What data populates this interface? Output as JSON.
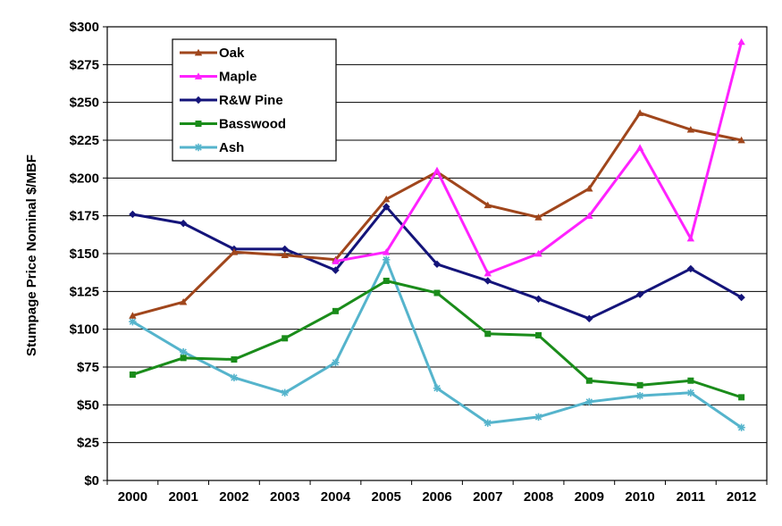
{
  "chart_data": {
    "type": "line",
    "title": "",
    "xlabel": "",
    "ylabel": "Stumpage Price Nominal $/MBF",
    "categories": [
      "2000",
      "2001",
      "2002",
      "2003",
      "2004",
      "2005",
      "2006",
      "2007",
      "2008",
      "2009",
      "2010",
      "2011",
      "2012"
    ],
    "ylim": [
      0,
      300
    ],
    "ytick_labels": [
      "$0",
      "$25",
      "$50",
      "$75",
      "$100",
      "$125",
      "$150",
      "$175",
      "$200",
      "$225",
      "$250",
      "$275",
      "$300"
    ],
    "grid": "horizontal",
    "legend_position": "top-left",
    "series": [
      {
        "name": "Oak",
        "color": "#a0461c",
        "marker": "triangle",
        "values": [
          109,
          118,
          151,
          149,
          146,
          186,
          204,
          182,
          174,
          193,
          243,
          232,
          225
        ]
      },
      {
        "name": "Maple",
        "color": "#ff22ff",
        "marker": "triangle",
        "values": [
          null,
          null,
          null,
          null,
          145,
          151,
          205,
          137,
          150,
          175,
          220,
          160,
          290
        ]
      },
      {
        "name": "R&W Pine",
        "color": "#14147a",
        "marker": "diamond",
        "values": [
          176,
          170,
          153,
          153,
          139,
          181,
          143,
          132,
          120,
          107,
          123,
          140,
          121
        ]
      },
      {
        "name": "Basswood",
        "color": "#1a8c1a",
        "marker": "square",
        "values": [
          70,
          81,
          80,
          94,
          112,
          132,
          124,
          97,
          96,
          66,
          63,
          66,
          55
        ]
      },
      {
        "name": "Ash",
        "color": "#55b4cc",
        "marker": "star",
        "values": [
          105,
          85,
          68,
          58,
          78,
          146,
          61,
          38,
          42,
          52,
          56,
          58,
          35
        ]
      }
    ]
  }
}
